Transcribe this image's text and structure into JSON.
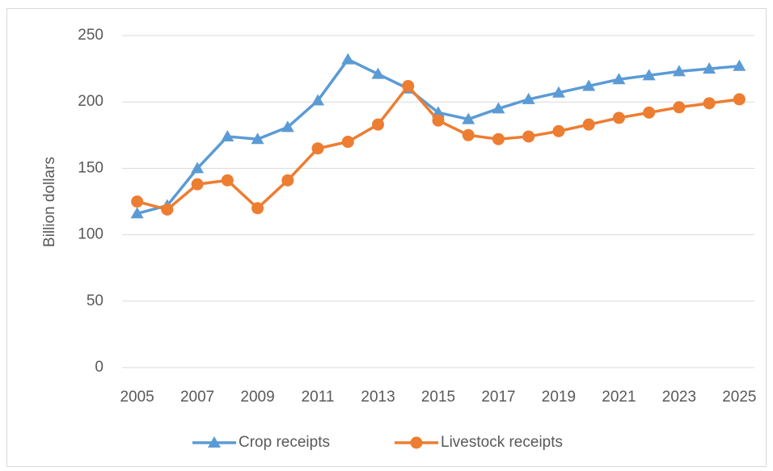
{
  "chart_data": {
    "type": "line",
    "y_label": "Billion dollars",
    "categories": [
      2005,
      null,
      2007,
      null,
      2009,
      null,
      2011,
      null,
      2013,
      null,
      2015,
      null,
      2017,
      null,
      2019,
      null,
      2021,
      null,
      2023,
      null,
      2025
    ],
    "series": [
      {
        "name": "Crop receipts",
        "color": "#5b9bd5",
        "marker": "triangle",
        "values": [
          116,
          122,
          150,
          174,
          172,
          181,
          201,
          232,
          221,
          210,
          192,
          187,
          195,
          202,
          207,
          212,
          217,
          220,
          223,
          225,
          227
        ]
      },
      {
        "name": "Livestock receipts",
        "color": "#ed7d31",
        "marker": "circle",
        "values": [
          125,
          119,
          138,
          141,
          120,
          141,
          165,
          170,
          183,
          212,
          186,
          175,
          172,
          174,
          178,
          183,
          188,
          192,
          196,
          199,
          202
        ]
      }
    ],
    "ylim": [
      0,
      250
    ],
    "yticks": [
      0,
      50,
      100,
      150,
      200,
      250
    ],
    "grid": true,
    "legend": "bottom"
  }
}
